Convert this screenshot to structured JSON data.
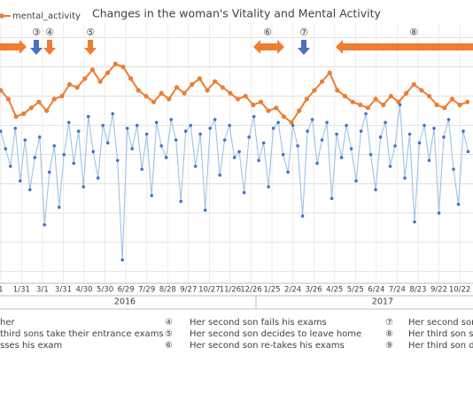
{
  "chart_data": {
    "type": "line",
    "title": "Changes in the woman's Vitality and Mental Activity",
    "xlim": [
      -1,
      679
    ],
    "ylim": [
      0.6,
      9.5
    ],
    "yticks": [
      1,
      2,
      3,
      4,
      5,
      6,
      7,
      8,
      9
    ],
    "grid": true,
    "xticks": [
      {
        "value": 0,
        "label": "1"
      },
      {
        "value": 30,
        "label": "1/31"
      },
      {
        "value": 60,
        "label": "3/1"
      },
      {
        "value": 90,
        "label": "3/31"
      },
      {
        "value": 120,
        "label": "4/30"
      },
      {
        "value": 150,
        "label": "5/30"
      },
      {
        "value": 180,
        "label": "6/29"
      },
      {
        "value": 210,
        "label": "7/29"
      },
      {
        "value": 240,
        "label": "8/28"
      },
      {
        "value": 270,
        "label": "9/27"
      },
      {
        "value": 300,
        "label": "10/27"
      },
      {
        "value": 330,
        "label": "11/26"
      },
      {
        "value": 360,
        "label": "12/26"
      },
      {
        "value": 390,
        "label": "1/25"
      },
      {
        "value": 420,
        "label": "2/24"
      },
      {
        "value": 450,
        "label": "3/26"
      },
      {
        "value": 480,
        "label": "4/25"
      },
      {
        "value": 510,
        "label": "5/25"
      },
      {
        "value": 540,
        "label": "6/24"
      },
      {
        "value": 570,
        "label": "7/24"
      },
      {
        "value": 600,
        "label": "8/23"
      },
      {
        "value": 630,
        "label": "9/22"
      },
      {
        "value": 660,
        "label": "10/22"
      }
    ],
    "years": [
      "2016",
      "2017"
    ],
    "series": [
      {
        "color": "#5b9bd5",
        "x": [
          0,
          7,
          14,
          21,
          28,
          35,
          42,
          49,
          56,
          63,
          70,
          77,
          84,
          91,
          98,
          105,
          112,
          119,
          126,
          133,
          140,
          147,
          154,
          161,
          168,
          175,
          182,
          189,
          196,
          203,
          210,
          217,
          224,
          231,
          238,
          245,
          252,
          259,
          266,
          273,
          280,
          287,
          294,
          301,
          308,
          315,
          322,
          329,
          336,
          343,
          350,
          357,
          364,
          371,
          378,
          385,
          392,
          399,
          406,
          413,
          420,
          427,
          434,
          441,
          448,
          455,
          462,
          469,
          476,
          483,
          490,
          497,
          504,
          511,
          518,
          525,
          532,
          539,
          546,
          553,
          560,
          567,
          574,
          581,
          588,
          595,
          602,
          609,
          616,
          623,
          630,
          637,
          644,
          651,
          658,
          665,
          672
        ],
        "values": [
          5.8,
          5.2,
          4.6,
          5.9,
          4.1,
          5.5,
          3.8,
          4.9,
          5.6,
          2.6,
          4.4,
          5.3,
          3.2,
          5.0,
          6.1,
          4.7,
          5.8,
          3.9,
          6.3,
          5.1,
          4.2,
          6.0,
          5.4,
          6.4,
          4.8,
          1.4,
          5.9,
          5.2,
          6.0,
          4.5,
          5.7,
          3.6,
          6.1,
          5.3,
          4.9,
          6.2,
          5.5,
          3.4,
          5.8,
          6.0,
          4.6,
          5.7,
          3.1,
          5.9,
          6.2,
          4.3,
          5.5,
          6.0,
          4.9,
          5.1,
          3.7,
          5.6,
          6.3,
          4.8,
          5.4,
          3.9,
          5.9,
          6.1,
          5.0,
          4.4,
          6.0,
          5.3,
          2.9,
          5.8,
          6.2,
          4.7,
          5.5,
          6.1,
          3.5,
          5.7,
          4.9,
          6.0,
          5.2,
          4.1,
          5.8,
          6.4,
          5.0,
          3.8,
          5.6,
          6.1,
          4.6,
          5.3,
          6.7,
          4.2,
          5.7,
          2.7,
          5.4,
          6.0,
          4.8,
          5.9,
          3.0,
          5.6,
          6.2,
          4.5,
          3.3,
          5.8,
          5.1
        ]
      },
      {
        "name": "mental_activity",
        "color": "#ed7d31",
        "x": [
          0,
          11,
          22,
          33,
          44,
          55,
          66,
          77,
          88,
          99,
          110,
          121,
          132,
          143,
          154,
          165,
          176,
          187,
          198,
          209,
          220,
          231,
          242,
          253,
          264,
          275,
          286,
          297,
          308,
          319,
          330,
          341,
          352,
          363,
          374,
          385,
          396,
          407,
          418,
          429,
          440,
          451,
          462,
          473,
          484,
          495,
          506,
          517,
          528,
          539,
          550,
          561,
          572,
          583,
          594,
          605,
          616,
          627,
          638,
          649,
          660,
          671
        ],
        "values": [
          7.2,
          6.9,
          6.3,
          6.4,
          6.6,
          6.8,
          6.5,
          6.9,
          7.0,
          7.4,
          7.3,
          7.6,
          7.9,
          7.5,
          7.8,
          8.1,
          8.0,
          7.6,
          7.2,
          7.0,
          6.8,
          7.1,
          6.9,
          7.3,
          7.1,
          7.4,
          7.6,
          7.2,
          7.5,
          7.3,
          7.1,
          6.9,
          7.0,
          6.7,
          6.8,
          6.5,
          6.6,
          6.3,
          6.1,
          6.5,
          6.9,
          7.2,
          7.5,
          7.8,
          7.2,
          7.0,
          6.8,
          6.7,
          6.6,
          6.9,
          6.7,
          7.0,
          6.8,
          7.1,
          7.4,
          7.2,
          7.0,
          6.7,
          6.6,
          6.9,
          6.7,
          6.8
        ]
      }
    ]
  },
  "markers": [
    "③",
    "④",
    "⑤",
    "⑥",
    "⑦",
    "⑧"
  ],
  "notes": [
    [
      "her",
      "third sons take their entrance exams",
      "sses his exam"
    ],
    [
      "④",
      "Her second son fails his exams",
      "⑤",
      "Her second son decides to leave home",
      "⑥",
      "Her second son re-takes his exams"
    ],
    [
      "⑦",
      "Her second son",
      "⑧",
      "Her third son st",
      "⑨",
      "Her third son de"
    ]
  ]
}
